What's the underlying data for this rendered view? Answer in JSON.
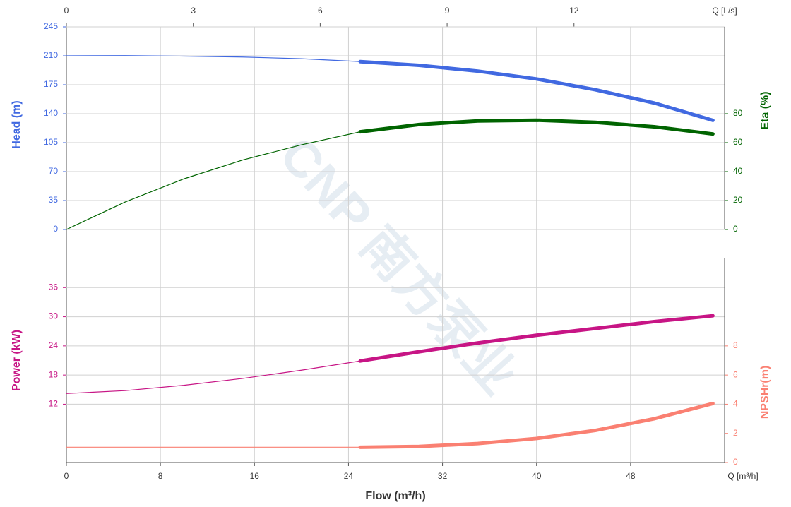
{
  "chart_data": {
    "type": "line",
    "x_title": "Flow (m³/h)",
    "x_unit": "Q [m³/h]",
    "x2_unit": "Q [L/s]",
    "watermark": "CNP 南方泵业",
    "x": [
      0,
      5,
      10,
      15,
      20,
      25,
      30,
      35,
      40,
      45,
      50,
      55
    ],
    "xlim": [
      0,
      56
    ],
    "xticks": [
      0,
      8,
      16,
      24,
      32,
      40,
      48
    ],
    "x2lim": [
      0,
      15.56
    ],
    "x2ticks": [
      0,
      3,
      6,
      9,
      12
    ],
    "operating_range": [
      25,
      55
    ],
    "grid": true,
    "panels": [
      {
        "y_title": "Head (m)",
        "ylim": [
          0,
          245
        ],
        "yticks": [
          0,
          35,
          70,
          105,
          140,
          175,
          210,
          245
        ],
        "y2_title": "Eta (%)",
        "y2lim": [
          0,
          140
        ],
        "y2ticks": [
          0,
          20,
          40,
          60,
          80
        ],
        "series": [
          {
            "color": "#4169e1",
            "axis": "y",
            "values": [
              210,
              210.2,
              209.6,
              208.5,
              206.5,
              203,
              198.5,
              191.5,
              182,
              169,
              153,
              132
            ]
          },
          {
            "color": "#006400",
            "axis": "y2",
            "values": [
              0,
              19,
              35,
              48,
              58.5,
              67.5,
              72.5,
              75,
              75.5,
              74,
              71,
              66
            ]
          }
        ]
      },
      {
        "y_title": "Power (kW)",
        "ylim": [
          0,
          42
        ],
        "yticks": [
          12,
          18,
          24,
          30,
          36
        ],
        "y2_title": "NPSHr(m)",
        "y2lim": [
          0,
          14
        ],
        "y2ticks": [
          0,
          2,
          4,
          6,
          8
        ],
        "series": [
          {
            "color": "#c71585",
            "axis": "y",
            "values": [
              14.2,
              14.8,
              15.9,
              17.3,
              19.0,
              20.9,
              22.8,
              24.6,
              26.2,
              27.6,
              29.0,
              30.2
            ]
          },
          {
            "color": "#fa8072",
            "axis": "y2",
            "values": [
              1.05,
              1.05,
              1.05,
              1.05,
              1.05,
              1.05,
              1.1,
              1.3,
              1.65,
              2.2,
              3.0,
              4.05
            ]
          }
        ]
      }
    ]
  }
}
